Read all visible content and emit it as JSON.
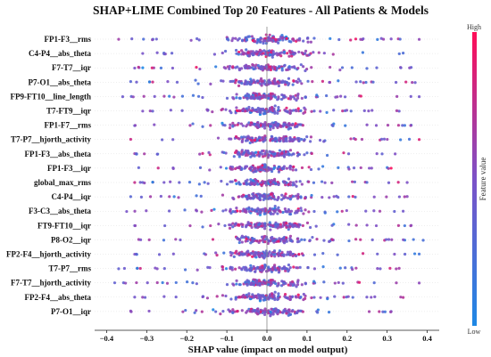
{
  "chart_data": {
    "type": "scatter",
    "subtype": "beeswarm",
    "title": "SHAP+LIME Combined Top 20 Features - All Patients & Models",
    "xlabel": "SHAP value (impact on model output)",
    "ylabel": "",
    "xlim": [
      -0.43,
      0.43
    ],
    "x_ticks": [
      "−0.4",
      "−0.3",
      "−0.2",
      "−0.1",
      "0.0",
      "0.1",
      "0.2",
      "0.3",
      "0.4"
    ],
    "x_tick_values": [
      -0.4,
      -0.3,
      -0.2,
      -0.1,
      0.0,
      0.1,
      0.2,
      0.3,
      0.4
    ],
    "features": [
      {
        "name": "FP1-F3__rms",
        "min": -0.37,
        "max": 0.38
      },
      {
        "name": "C4-P4__abs_theta",
        "min": -0.31,
        "max": 0.34
      },
      {
        "name": "F7-T7__iqr",
        "min": -0.33,
        "max": 0.36
      },
      {
        "name": "P7-O1__abs_theta",
        "min": -0.34,
        "max": 0.37
      },
      {
        "name": "FP9-FT10__line_length",
        "min": -0.36,
        "max": 0.38
      },
      {
        "name": "T7-FT9__iqr",
        "min": -0.31,
        "max": 0.33
      },
      {
        "name": "FP1-F7__rms",
        "min": -0.33,
        "max": 0.36
      },
      {
        "name": "T7-P7__hjorth_activity",
        "min": -0.34,
        "max": 0.38
      },
      {
        "name": "FP1-F3__abs_theta",
        "min": -0.33,
        "max": 0.32
      },
      {
        "name": "FP1-F3__iqr",
        "min": -0.32,
        "max": 0.31
      },
      {
        "name": "global_max_rms",
        "min": -0.33,
        "max": 0.35
      },
      {
        "name": "C4-P4__iqr",
        "min": -0.34,
        "max": 0.35
      },
      {
        "name": "F3-C3__abs_theta",
        "min": -0.35,
        "max": 0.34
      },
      {
        "name": "FT9-FT10__iqr",
        "min": -0.33,
        "max": 0.36
      },
      {
        "name": "P8-O2__iqr",
        "min": -0.32,
        "max": 0.39
      },
      {
        "name": "FP2-F4__hjorth_activity",
        "min": -0.33,
        "max": 0.38
      },
      {
        "name": "T7-P7__rms",
        "min": -0.37,
        "max": 0.33
      },
      {
        "name": "F7-T7__hjorth_activity",
        "min": -0.38,
        "max": 0.38
      },
      {
        "name": "FP2-F4__abs_theta",
        "min": -0.33,
        "max": 0.34
      },
      {
        "name": "P7-O1__iqr",
        "min": -0.34,
        "max": 0.31
      }
    ],
    "colorbar": {
      "title": "Feature value",
      "high_label": "High",
      "low_label": "Low",
      "low_color": "#1E88E5",
      "high_color": "#FF0D57"
    },
    "grid": false,
    "zero_line": true
  }
}
